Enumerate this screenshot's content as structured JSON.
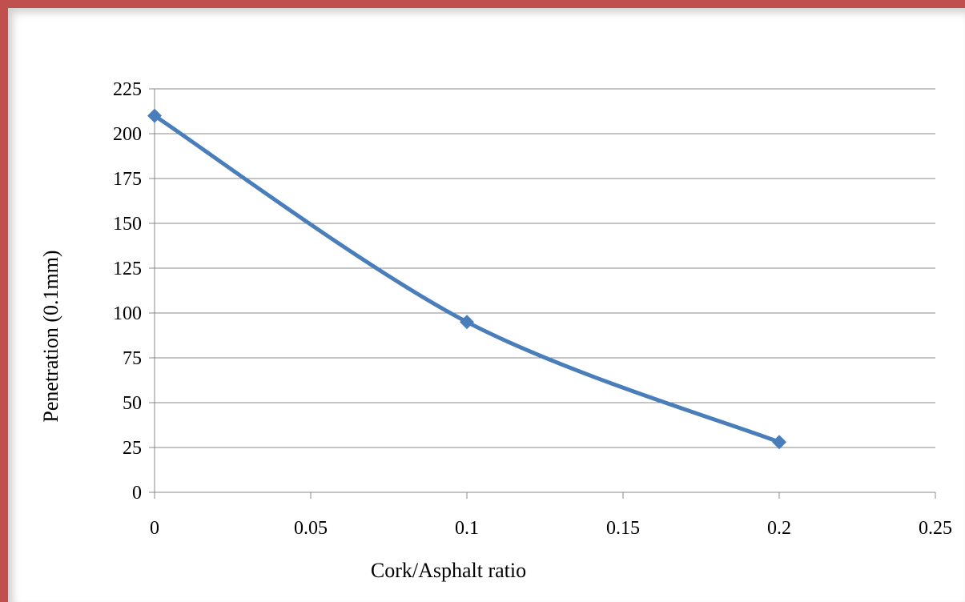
{
  "chart_data": {
    "type": "line",
    "title": "",
    "xlabel": "Cork/Asphalt ratio",
    "ylabel": "Penetration (0.1mm)",
    "xlim": [
      0,
      0.25
    ],
    "ylim": [
      0,
      225
    ],
    "x_ticks": [
      "0",
      "0.05",
      "0.1",
      "0.15",
      "0.2",
      "0.25"
    ],
    "y_ticks": [
      "0",
      "25",
      "50",
      "75",
      "100",
      "125",
      "150",
      "175",
      "200",
      "225"
    ],
    "grid": "horizontal",
    "legend": "none",
    "series": [
      {
        "color": "#4a7ebb",
        "marker": "diamond",
        "smooth": true,
        "x": [
          0,
          0.1,
          0.2
        ],
        "y": [
          210,
          95,
          28
        ]
      }
    ]
  },
  "colors": {
    "frame_border": "#c0504d",
    "series": "#4a7ebb",
    "grid": "#888888"
  }
}
